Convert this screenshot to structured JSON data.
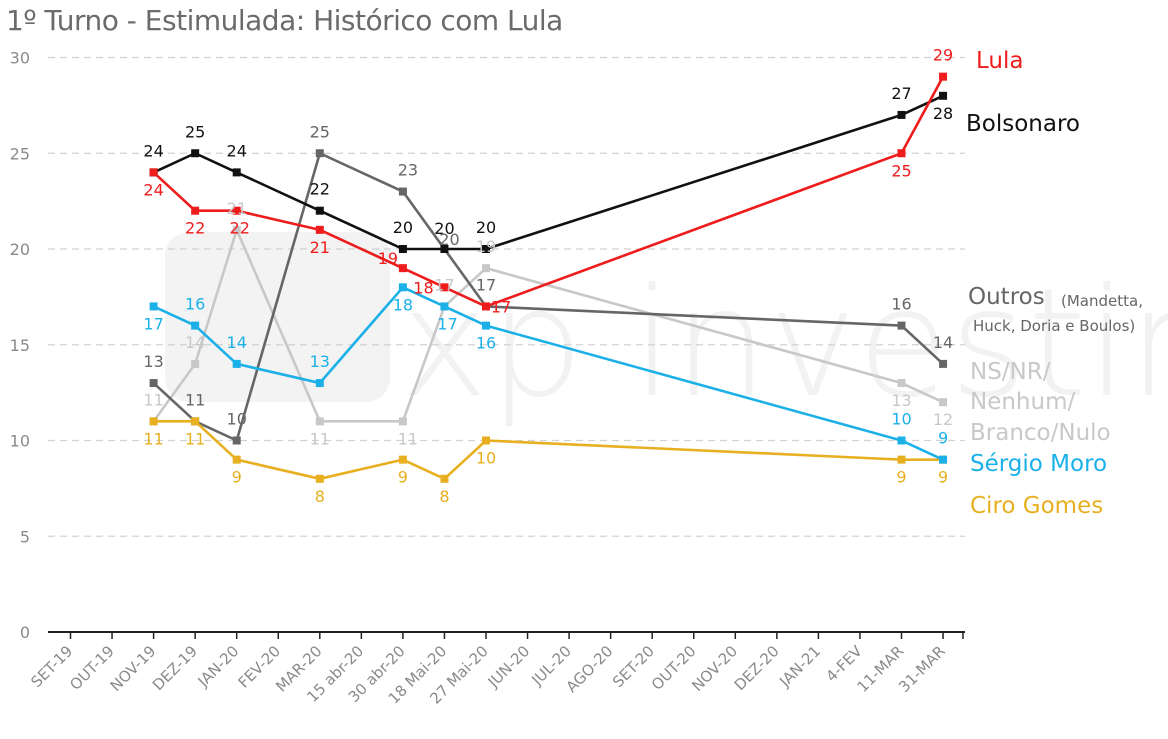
{
  "chart_data": {
    "type": "line",
    "title": "1º Turno - Estimulada: Histórico com Lula",
    "xlabel": "",
    "ylabel": "",
    "ylim": [
      0,
      30
    ],
    "yticks": [
      0,
      5,
      10,
      15,
      20,
      25,
      30
    ],
    "grid": "horizontal dashed",
    "categories": [
      "SET-19",
      "OUT-19",
      "NOV-19",
      "DEZ-19",
      "JAN-20",
      "FEV-20",
      "MAR-20",
      "15 abr-20",
      "30 abr-20",
      "18 Mai-20",
      "27 Mai-20",
      "JUN-20",
      "JUL-20",
      "AGO-20",
      "SET-20",
      "OUT-20",
      "NOV-20",
      "DEZ-20",
      "JAN-21",
      "4-FEV",
      "11-MAR",
      "31-MAR"
    ],
    "series": [
      {
        "name": "Lula",
        "color": "#ee1c1c",
        "values": [
          null,
          null,
          24,
          22,
          22,
          null,
          21,
          null,
          19,
          18,
          17,
          null,
          null,
          null,
          null,
          null,
          null,
          null,
          null,
          null,
          25,
          29
        ],
        "labels": [
          null,
          null,
          "24",
          "22",
          "22",
          null,
          "21",
          null,
          "19",
          "18",
          "17",
          null,
          null,
          null,
          null,
          null,
          null,
          null,
          null,
          null,
          "25",
          "29"
        ]
      },
      {
        "name": "Bolsonaro",
        "color": "#111111",
        "values": [
          null,
          null,
          24,
          25,
          24,
          null,
          22,
          null,
          20,
          20,
          20,
          null,
          null,
          null,
          null,
          null,
          null,
          null,
          null,
          null,
          27,
          28
        ],
        "labels": [
          null,
          null,
          "24",
          "25",
          "24",
          null,
          "22",
          null,
          "20",
          "20",
          "20",
          null,
          null,
          null,
          null,
          null,
          null,
          null,
          null,
          null,
          "27",
          "28"
        ]
      },
      {
        "name": "Outros",
        "name_detail_1": "(Mandetta,",
        "name_detail_2": "Huck, Doria e Boulos)",
        "color": "#666666",
        "values": [
          null,
          null,
          13,
          11,
          10,
          null,
          25,
          null,
          23,
          20,
          17,
          null,
          null,
          null,
          null,
          null,
          null,
          null,
          null,
          null,
          16,
          14
        ],
        "labels": [
          null,
          null,
          "13",
          "11",
          "10",
          null,
          "25",
          null,
          "23",
          "20",
          "17",
          null,
          null,
          null,
          null,
          null,
          null,
          null,
          null,
          null,
          "16",
          "14"
        ]
      },
      {
        "name": "NS/NR/",
        "name_line2": "Nenhum/",
        "name_line3": "Branco/Nulo",
        "color": "#c8c8c8",
        "values": [
          null,
          null,
          11,
          14,
          21,
          null,
          11,
          null,
          11,
          17,
          19,
          null,
          null,
          null,
          null,
          null,
          null,
          null,
          null,
          null,
          13,
          12
        ],
        "labels": [
          null,
          null,
          "11",
          "14",
          "21",
          null,
          "11",
          null,
          "11",
          "17",
          "19",
          null,
          null,
          null,
          null,
          null,
          null,
          null,
          null,
          null,
          "13",
          "12"
        ]
      },
      {
        "name": "Sérgio Moro",
        "color": "#1bb0e8",
        "values": [
          null,
          null,
          17,
          16,
          14,
          null,
          13,
          null,
          18,
          17,
          16,
          null,
          null,
          null,
          null,
          null,
          null,
          null,
          null,
          null,
          10,
          9
        ],
        "labels": [
          null,
          null,
          "17",
          "16",
          "14",
          null,
          "13",
          null,
          "18",
          "17",
          "16",
          null,
          null,
          null,
          null,
          null,
          null,
          null,
          null,
          null,
          "10",
          "9"
        ]
      },
      {
        "name": "Ciro Gomes",
        "color": "#e8b021",
        "values": [
          null,
          null,
          11,
          11,
          9,
          null,
          8,
          null,
          9,
          8,
          10,
          null,
          null,
          null,
          null,
          null,
          null,
          null,
          null,
          null,
          9,
          9
        ],
        "labels": [
          null,
          null,
          "11",
          "11",
          "9",
          null,
          "8",
          null,
          "9",
          "8",
          "10",
          null,
          null,
          null,
          null,
          null,
          null,
          null,
          null,
          null,
          "9",
          "9"
        ]
      }
    ],
    "legend": "right, inline series names",
    "watermark": "xp investimentos"
  }
}
